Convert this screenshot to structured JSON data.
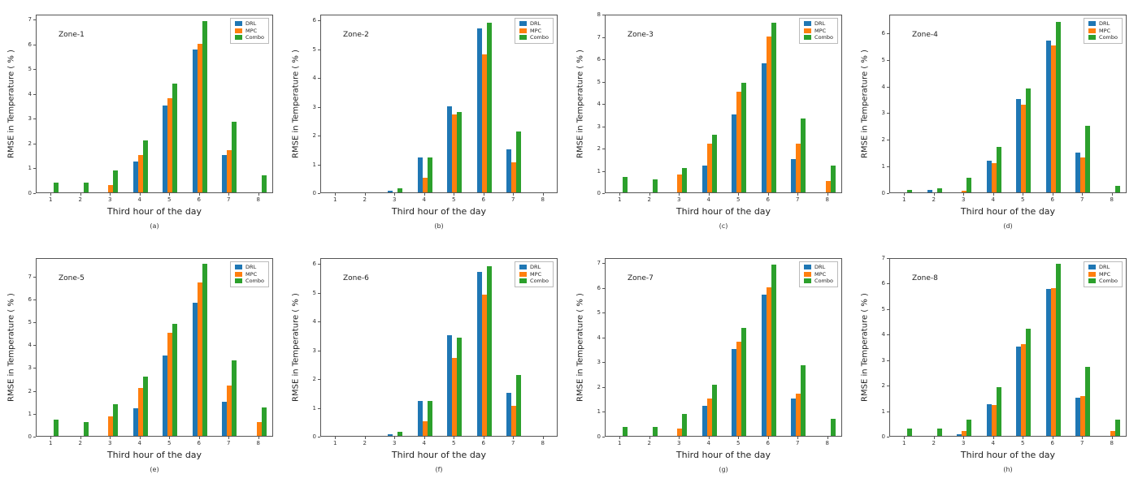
{
  "figure": {
    "ylabel": "RMSE in Temperature ( % )",
    "xlabel": "Third hour of the day",
    "legend": [
      "DRL",
      "MPC",
      "Combo"
    ],
    "colors": {
      "DRL": "#1f77b4",
      "MPC": "#ff7f0e",
      "Combo": "#2ca02c"
    }
  },
  "chart_data": [
    {
      "type": "bar",
      "zone_label": "Zone-1",
      "sublabel": "(a)",
      "categories": [
        1,
        2,
        3,
        4,
        5,
        6,
        7,
        8
      ],
      "xlabel": "Third hour of the day",
      "ylabel": "RMSE in Temperature ( % )",
      "yticks": [
        0,
        1,
        2,
        3,
        4,
        5,
        6,
        7
      ],
      "ylim": [
        0,
        7.2
      ],
      "series": [
        {
          "name": "DRL",
          "values": [
            0,
            0,
            0,
            1.25,
            3.5,
            5.75,
            1.5,
            0
          ]
        },
        {
          "name": "MPC",
          "values": [
            0,
            0,
            0.3,
            1.5,
            3.8,
            6.0,
            1.7,
            0
          ]
        },
        {
          "name": "Combo",
          "values": [
            0.4,
            0.4,
            0.9,
            2.1,
            4.4,
            6.9,
            2.85,
            0.7
          ]
        }
      ]
    },
    {
      "type": "bar",
      "zone_label": "Zone-2",
      "sublabel": "(b)",
      "categories": [
        1,
        2,
        3,
        4,
        5,
        6,
        7,
        8
      ],
      "xlabel": "Third hour of the day",
      "ylabel": "RMSE in Temperature ( % )",
      "yticks": [
        0,
        1,
        2,
        3,
        4,
        5,
        6
      ],
      "ylim": [
        0,
        6.2
      ],
      "series": [
        {
          "name": "DRL",
          "values": [
            0,
            0,
            0.05,
            1.2,
            3.0,
            5.7,
            1.5,
            0
          ]
        },
        {
          "name": "MPC",
          "values": [
            0,
            0,
            0,
            0.5,
            2.7,
            4.8,
            1.05,
            0
          ]
        },
        {
          "name": "Combo",
          "values": [
            0,
            0,
            0.15,
            1.2,
            2.8,
            5.9,
            2.1,
            0
          ]
        }
      ]
    },
    {
      "type": "bar",
      "zone_label": "Zone-3",
      "sublabel": "(c)",
      "categories": [
        1,
        2,
        3,
        4,
        5,
        6,
        7,
        8
      ],
      "xlabel": "Third hour of the day",
      "ylabel": "RMSE in Temperature ( % )",
      "yticks": [
        0,
        1,
        2,
        3,
        4,
        5,
        6,
        7,
        8
      ],
      "ylim": [
        0,
        8.0
      ],
      "series": [
        {
          "name": "DRL",
          "values": [
            0,
            0,
            0,
            1.2,
            3.5,
            5.8,
            1.5,
            0
          ]
        },
        {
          "name": "MPC",
          "values": [
            0,
            0,
            0.8,
            2.2,
            4.5,
            7.0,
            2.2,
            0.5
          ]
        },
        {
          "name": "Combo",
          "values": [
            0.7,
            0.6,
            1.1,
            2.6,
            4.9,
            7.6,
            3.3,
            1.2
          ]
        }
      ]
    },
    {
      "type": "bar",
      "zone_label": "Zone-4",
      "sublabel": "(d)",
      "categories": [
        1,
        2,
        3,
        4,
        5,
        6,
        7,
        8
      ],
      "xlabel": "Third hour of the day",
      "ylabel": "RMSE in Temperature ( % )",
      "yticks": [
        0,
        1,
        2,
        3,
        4,
        5,
        6
      ],
      "ylim": [
        0,
        6.7
      ],
      "series": [
        {
          "name": "DRL",
          "values": [
            0,
            0.1,
            0,
            1.2,
            3.5,
            5.7,
            1.5,
            0
          ]
        },
        {
          "name": "MPC",
          "values": [
            0,
            0,
            0.05,
            1.1,
            3.3,
            5.5,
            1.3,
            0
          ]
        },
        {
          "name": "Combo",
          "values": [
            0.1,
            0.15,
            0.55,
            1.7,
            3.9,
            6.4,
            2.5,
            0.25
          ]
        }
      ]
    },
    {
      "type": "bar",
      "zone_label": "Zone-5",
      "sublabel": "(e)",
      "categories": [
        1,
        2,
        3,
        4,
        5,
        6,
        7,
        8
      ],
      "xlabel": "Third hour of the day",
      "ylabel": "RMSE in Temperature ( % )",
      "yticks": [
        0,
        1,
        2,
        3,
        4,
        5,
        6,
        7
      ],
      "ylim": [
        0,
        7.8
      ],
      "series": [
        {
          "name": "DRL",
          "values": [
            0,
            0,
            0,
            1.2,
            3.5,
            5.8,
            1.5,
            0
          ]
        },
        {
          "name": "MPC",
          "values": [
            0,
            0,
            0.85,
            2.1,
            4.5,
            6.7,
            2.2,
            0.6
          ]
        },
        {
          "name": "Combo",
          "values": [
            0.7,
            0.6,
            1.4,
            2.6,
            4.9,
            7.5,
            3.3,
            1.25
          ]
        }
      ]
    },
    {
      "type": "bar",
      "zone_label": "Zone-6",
      "sublabel": "(f)",
      "categories": [
        1,
        2,
        3,
        4,
        5,
        6,
        7,
        8
      ],
      "xlabel": "Third hour of the day",
      "ylabel": "RMSE in Temperature ( % )",
      "yticks": [
        0,
        1,
        2,
        3,
        4,
        5,
        6
      ],
      "ylim": [
        0,
        6.2
      ],
      "series": [
        {
          "name": "DRL",
          "values": [
            0,
            0,
            0.05,
            1.2,
            3.5,
            5.7,
            1.5,
            0
          ]
        },
        {
          "name": "MPC",
          "values": [
            0,
            0,
            0,
            0.5,
            2.7,
            4.9,
            1.05,
            0
          ]
        },
        {
          "name": "Combo",
          "values": [
            0,
            0,
            0.15,
            1.2,
            3.4,
            5.9,
            2.1,
            0
          ]
        }
      ]
    },
    {
      "type": "bar",
      "zone_label": "Zone-7",
      "sublabel": "(g)",
      "categories": [
        1,
        2,
        3,
        4,
        5,
        6,
        7,
        8
      ],
      "xlabel": "Third hour of the day",
      "ylabel": "RMSE in Temperature ( % )",
      "yticks": [
        0,
        1,
        2,
        3,
        4,
        5,
        6,
        7
      ],
      "ylim": [
        0,
        7.2
      ],
      "series": [
        {
          "name": "DRL",
          "values": [
            0,
            0,
            0,
            1.2,
            3.5,
            5.7,
            1.5,
            0
          ]
        },
        {
          "name": "MPC",
          "values": [
            0,
            0,
            0.3,
            1.5,
            3.8,
            6.0,
            1.7,
            0
          ]
        },
        {
          "name": "Combo",
          "values": [
            0.35,
            0.35,
            0.9,
            2.05,
            4.35,
            6.9,
            2.85,
            0.7
          ]
        }
      ]
    },
    {
      "type": "bar",
      "zone_label": "Zone-8",
      "sublabel": "(h)",
      "categories": [
        1,
        2,
        3,
        4,
        5,
        6,
        7,
        8
      ],
      "xlabel": "Third hour of the day",
      "ylabel": "RMSE in Temperature ( % )",
      "yticks": [
        0,
        1,
        2,
        3,
        4,
        5,
        6,
        7
      ],
      "ylim": [
        0,
        7.0
      ],
      "series": [
        {
          "name": "DRL",
          "values": [
            0,
            0,
            0.05,
            1.25,
            3.5,
            5.75,
            1.5,
            0
          ]
        },
        {
          "name": "MPC",
          "values": [
            0,
            0,
            0.2,
            1.2,
            3.6,
            5.8,
            1.55,
            0.2
          ]
        },
        {
          "name": "Combo",
          "values": [
            0.3,
            0.3,
            0.65,
            1.9,
            4.2,
            6.75,
            2.7,
            0.65
          ]
        }
      ]
    }
  ]
}
